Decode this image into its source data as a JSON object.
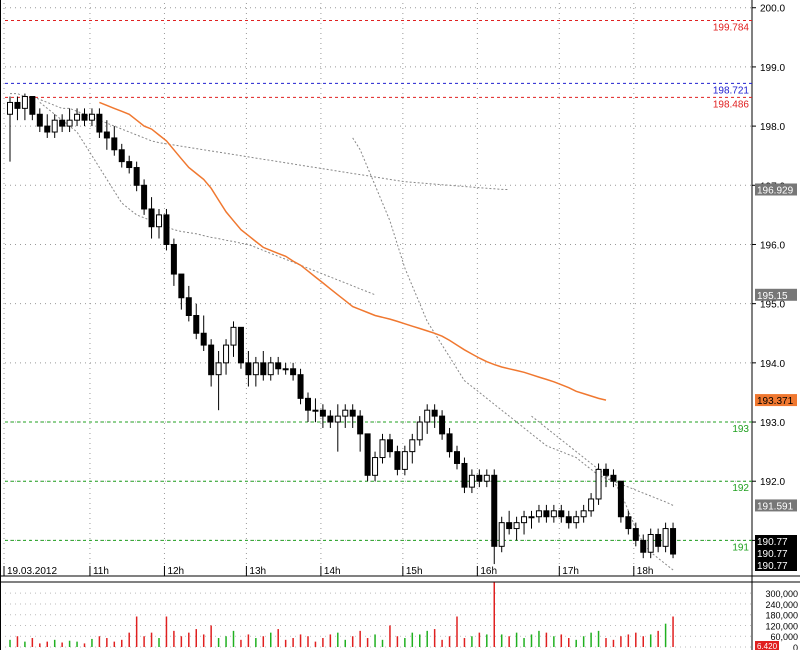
{
  "colors": {
    "bull": "#ffffff",
    "bear": "#000000",
    "outline": "#000000",
    "ma": "#f07830",
    "band": "#888888",
    "red_level": "#e02020",
    "blue_level": "#2020d0",
    "green_level": "#20a020",
    "vol_up": "#20b020",
    "vol_down": "#e02020"
  },
  "chart_data": [
    {
      "type": "candlestick",
      "ylim": [
        190.5,
        200.08
      ],
      "y_ticks": [
        191.0,
        192.0,
        193.0,
        194.0,
        195.0,
        196.0,
        197.0,
        198.0,
        199.0,
        200.0
      ],
      "x_ticks": [
        "19.03.2012",
        "11h",
        "12h",
        "13h",
        "14h",
        "15h",
        "16h",
        "17h",
        "18h"
      ],
      "grid": true,
      "price_levels": [
        {
          "label": "199.784",
          "value": 199.784,
          "color": "red"
        },
        {
          "label": "198.721",
          "value": 198.721,
          "color": "blue"
        },
        {
          "label": "198.486",
          "value": 198.486,
          "color": "red"
        },
        {
          "label": "193",
          "value": 193.0,
          "color": "green"
        },
        {
          "label": "192",
          "value": 192.0,
          "color": "green"
        },
        {
          "label": "191",
          "value": 191.0,
          "color": "green"
        }
      ],
      "value_tags": [
        {
          "label": "196.929",
          "value": 196.929,
          "style": "gray"
        },
        {
          "label": "195.15",
          "value": 195.15,
          "style": "gray"
        },
        {
          "label": "193.371",
          "value": 193.371,
          "style": "orange"
        },
        {
          "label": "191.591",
          "value": 191.591,
          "style": "gray"
        },
        {
          "label": "190.77",
          "value": 190.77,
          "style": "black"
        },
        {
          "label": "190.77",
          "value": 190.77,
          "style": "black"
        },
        {
          "label": "190.77",
          "value": 190.77,
          "style": "black"
        }
      ],
      "candles": [
        [
          198.2,
          198.5,
          197.4,
          198.4
        ],
        [
          198.4,
          198.5,
          198.1,
          198.3
        ],
        [
          198.3,
          198.55,
          198.1,
          198.5
        ],
        [
          198.5,
          198.5,
          198.1,
          198.2
        ],
        [
          198.2,
          198.3,
          197.9,
          198.0
        ],
        [
          198.0,
          198.2,
          197.8,
          197.9
        ],
        [
          197.9,
          198.2,
          197.8,
          198.1
        ],
        [
          198.1,
          198.2,
          197.9,
          198.0
        ],
        [
          198.0,
          198.3,
          197.9,
          198.1
        ],
        [
          198.1,
          198.3,
          198.0,
          198.2
        ],
        [
          198.2,
          198.3,
          198.0,
          198.1
        ],
        [
          198.1,
          198.3,
          198.0,
          198.2
        ],
        [
          198.2,
          198.3,
          197.8,
          197.9
        ],
        [
          197.9,
          198.1,
          197.6,
          197.8
        ],
        [
          197.8,
          198.0,
          197.5,
          197.6
        ],
        [
          197.6,
          197.7,
          197.3,
          197.4
        ],
        [
          197.4,
          197.5,
          197.2,
          197.3
        ],
        [
          197.3,
          197.4,
          196.9,
          197.0
        ],
        [
          197.0,
          197.1,
          196.5,
          196.6
        ],
        [
          196.6,
          196.8,
          196.1,
          196.3
        ],
        [
          196.3,
          196.6,
          196.1,
          196.5
        ],
        [
          196.5,
          196.6,
          195.9,
          196.0
        ],
        [
          196.0,
          196.1,
          195.3,
          195.5
        ],
        [
          195.5,
          195.5,
          194.9,
          195.1
        ],
        [
          195.1,
          195.3,
          194.7,
          194.8
        ],
        [
          194.8,
          195.0,
          194.4,
          194.5
        ],
        [
          194.5,
          194.8,
          194.2,
          194.3
        ],
        [
          194.3,
          194.4,
          193.6,
          193.8
        ],
        [
          193.8,
          194.2,
          193.2,
          194.0
        ],
        [
          194.0,
          194.4,
          193.8,
          194.3
        ],
        [
          194.3,
          194.7,
          194.1,
          194.6
        ],
        [
          194.6,
          194.6,
          193.9,
          194.0
        ],
        [
          194.0,
          194.2,
          193.6,
          193.8
        ],
        [
          193.8,
          194.1,
          193.6,
          194.0
        ],
        [
          194.0,
          194.2,
          193.7,
          193.8
        ],
        [
          193.8,
          194.1,
          193.7,
          194.0
        ],
        [
          194.0,
          194.1,
          193.8,
          193.9
        ],
        [
          193.9,
          194.0,
          193.8,
          193.9
        ],
        [
          193.9,
          194.0,
          193.7,
          193.8
        ],
        [
          193.8,
          193.9,
          193.3,
          193.4
        ],
        [
          193.4,
          193.5,
          193.0,
          193.2
        ],
        [
          193.2,
          193.4,
          193.0,
          193.2
        ],
        [
          193.2,
          193.3,
          192.9,
          193.1
        ],
        [
          193.1,
          193.2,
          192.9,
          193.0
        ],
        [
          193.0,
          193.3,
          192.5,
          193.1
        ],
        [
          193.1,
          193.3,
          192.9,
          193.2
        ],
        [
          193.2,
          193.3,
          192.9,
          193.1
        ],
        [
          193.1,
          193.2,
          192.5,
          192.8
        ],
        [
          192.8,
          192.8,
          192.0,
          192.1
        ],
        [
          192.1,
          192.5,
          192.0,
          192.4
        ],
        [
          192.4,
          192.8,
          192.3,
          192.7
        ],
        [
          192.7,
          192.8,
          192.4,
          192.5
        ],
        [
          192.5,
          192.6,
          192.1,
          192.2
        ],
        [
          192.2,
          192.6,
          192.1,
          192.5
        ],
        [
          192.5,
          192.8,
          192.3,
          192.7
        ],
        [
          192.7,
          193.1,
          192.6,
          193.0
        ],
        [
          193.0,
          193.3,
          192.8,
          193.2
        ],
        [
          193.2,
          193.3,
          192.9,
          193.1
        ],
        [
          193.1,
          193.2,
          192.7,
          192.8
        ],
        [
          192.8,
          192.9,
          192.4,
          192.5
        ],
        [
          192.5,
          192.6,
          192.2,
          192.3
        ],
        [
          192.3,
          192.4,
          191.8,
          191.9
        ],
        [
          191.9,
          192.2,
          191.8,
          192.1
        ],
        [
          192.1,
          192.2,
          191.9,
          192.0
        ],
        [
          192.0,
          192.2,
          191.9,
          192.1
        ],
        [
          192.1,
          192.2,
          190.6,
          190.9
        ],
        [
          190.9,
          191.4,
          190.8,
          191.3
        ],
        [
          191.3,
          191.5,
          191.1,
          191.2
        ],
        [
          191.2,
          191.4,
          191.0,
          191.3
        ],
        [
          191.3,
          191.5,
          191.1,
          191.4
        ],
        [
          191.4,
          191.5,
          191.2,
          191.4
        ],
        [
          191.4,
          191.6,
          191.3,
          191.5
        ],
        [
          191.5,
          191.6,
          191.3,
          191.4
        ],
        [
          191.4,
          191.6,
          191.3,
          191.5
        ],
        [
          191.5,
          191.6,
          191.3,
          191.4
        ],
        [
          191.4,
          191.5,
          191.2,
          191.3
        ],
        [
          191.3,
          191.5,
          191.2,
          191.4
        ],
        [
          191.4,
          191.6,
          191.3,
          191.5
        ],
        [
          191.5,
          191.8,
          191.4,
          191.7
        ],
        [
          191.7,
          192.3,
          191.6,
          192.2
        ],
        [
          192.2,
          192.3,
          191.9,
          192.1
        ],
        [
          192.1,
          192.2,
          191.9,
          192.0
        ],
        [
          192.0,
          192.0,
          191.3,
          191.4
        ],
        [
          191.4,
          191.5,
          191.1,
          191.2
        ],
        [
          191.2,
          191.3,
          190.9,
          191.0
        ],
        [
          191.0,
          191.1,
          190.7,
          190.8
        ],
        [
          190.8,
          191.2,
          190.7,
          191.1
        ],
        [
          191.1,
          191.2,
          190.8,
          190.9
        ],
        [
          190.9,
          191.3,
          190.8,
          191.2
        ],
        [
          191.2,
          191.3,
          190.7,
          190.77
        ]
      ],
      "moving_average": [
        198.4,
        198.35,
        198.3,
        198.25,
        198.2,
        198.1,
        198.0,
        197.95,
        197.85,
        197.75,
        197.6,
        197.45,
        197.3,
        197.2,
        197.1,
        196.95,
        196.75,
        196.55,
        196.4,
        196.25,
        196.15,
        196.05,
        195.95,
        195.9,
        195.85,
        195.8,
        195.72,
        195.65,
        195.55,
        195.45,
        195.35,
        195.25,
        195.15,
        195.05,
        194.95,
        194.9,
        194.85,
        194.8,
        194.77,
        194.74,
        194.7,
        194.66,
        194.62,
        194.58,
        194.54,
        194.5,
        194.45,
        194.38,
        194.3,
        194.22,
        194.15,
        194.08,
        194.02,
        193.97,
        193.93,
        193.9,
        193.87,
        193.84,
        193.8,
        193.76,
        193.72,
        193.68,
        193.63,
        193.58,
        193.52,
        193.48,
        193.44,
        193.4,
        193.371
      ],
      "ma_start_index": 17,
      "band_upper": [
        198.55,
        198.55,
        198.5,
        198.55,
        198.45,
        198.4,
        198.35,
        198.3,
        198.25,
        198.1,
        198.05,
        198.0,
        197.95,
        197.9,
        197.85,
        197.8,
        197.7,
        197.6,
        197.5,
        197.45,
        197.42,
        197.4,
        197.38,
        197.35,
        197.32,
        197.3,
        197.28,
        197.25,
        197.22,
        197.2,
        197.17,
        197.15,
        197.12,
        197.1,
        197.08,
        197.06,
        197.04,
        197.02,
        197.0,
        196.98,
        196.96,
        196.929
      ],
      "band_upper_start": 46,
      "band_mid": [
        198.4,
        198.3,
        198.2,
        198.1,
        198.0,
        197.9,
        197.7,
        197.5,
        197.3,
        197.1,
        196.9,
        196.7,
        196.6,
        196.5,
        196.45,
        196.4,
        196.35,
        196.3,
        196.25,
        196.22,
        196.2,
        196.18,
        196.15,
        196.12,
        196.1,
        196.07,
        196.05,
        196.02,
        196.0,
        195.95,
        195.9,
        195.85,
        195.8,
        195.75,
        195.7,
        195.65,
        195.6,
        195.55,
        195.5,
        195.45,
        195.4,
        195.35,
        195.3,
        195.25,
        195.2,
        195.15
      ],
      "band_mid_start": 44,
      "band_lower": [
        197.8,
        197.6,
        197.3,
        197.0,
        196.7,
        196.4,
        196.0,
        195.6,
        195.3,
        195.0,
        194.7,
        194.5,
        194.3,
        194.1,
        193.9,
        193.7,
        193.6,
        193.5,
        193.4,
        193.3,
        193.2,
        193.1,
        193.0,
        192.9,
        192.8,
        192.7,
        192.6,
        192.55,
        192.5,
        192.45,
        192.4,
        192.3,
        192.2,
        192.1,
        192.05,
        192.0,
        191.95,
        191.9,
        191.85,
        191.8,
        191.75,
        191.7,
        191.65,
        191.591
      ],
      "band_lower_start": 46,
      "band_low2": [
        193.1,
        193.0,
        192.9,
        192.8,
        192.7,
        192.6,
        192.5,
        192.4,
        192.3,
        192.2,
        192.1,
        192.0,
        191.8,
        191.5,
        191.2,
        190.95,
        190.8,
        190.7,
        190.6,
        190.5
      ],
      "band_low2_start": 52
    },
    {
      "type": "bar",
      "ylim": [
        0,
        340000
      ],
      "y_ticks": [
        "300,000",
        "240,000",
        "180,000",
        "120,000",
        "60,000",
        "0"
      ],
      "last_tag": "6.420",
      "values": [
        40000,
        60000,
        30000,
        50000,
        20000,
        30000,
        40000,
        25000,
        35000,
        30000,
        20000,
        45000,
        60000,
        50000,
        30000,
        40000,
        80000,
        170000,
        60000,
        80000,
        50000,
        170000,
        90000,
        60000,
        80000,
        100000,
        70000,
        120000,
        50000,
        60000,
        90000,
        40000,
        70000,
        50000,
        60000,
        80000,
        100000,
        40000,
        50000,
        70000,
        60000,
        30000,
        50000,
        70000,
        80000,
        40000,
        60000,
        90000,
        50000,
        70000,
        40000,
        120000,
        60000,
        50000,
        80000,
        70000,
        90000,
        100000,
        40000,
        60000,
        170000,
        50000,
        60000,
        80000,
        70000,
        360000,
        70000,
        60000,
        80000,
        50000,
        70000,
        90000,
        80000,
        60000,
        70000,
        50000,
        40000,
        60000,
        80000,
        90000,
        50000,
        40000,
        60000,
        70000,
        80000,
        60000,
        70000,
        90000,
        130000,
        170000
      ],
      "up": [
        1,
        0,
        1,
        0,
        0,
        0,
        1,
        0,
        1,
        1,
        0,
        1,
        0,
        0,
        0,
        0,
        0,
        0,
        0,
        0,
        1,
        0,
        0,
        0,
        0,
        0,
        0,
        0,
        1,
        1,
        1,
        0,
        0,
        1,
        0,
        1,
        0,
        0,
        0,
        0,
        0,
        0,
        0,
        0,
        1,
        1,
        0,
        0,
        0,
        1,
        1,
        0,
        0,
        1,
        1,
        1,
        1,
        0,
        0,
        0,
        0,
        0,
        1,
        0,
        1,
        0,
        1,
        0,
        1,
        1,
        1,
        1,
        0,
        1,
        0,
        0,
        1,
        1,
        1,
        1,
        0,
        0,
        0,
        0,
        0,
        0,
        1,
        0,
        1,
        0
      ]
    }
  ]
}
